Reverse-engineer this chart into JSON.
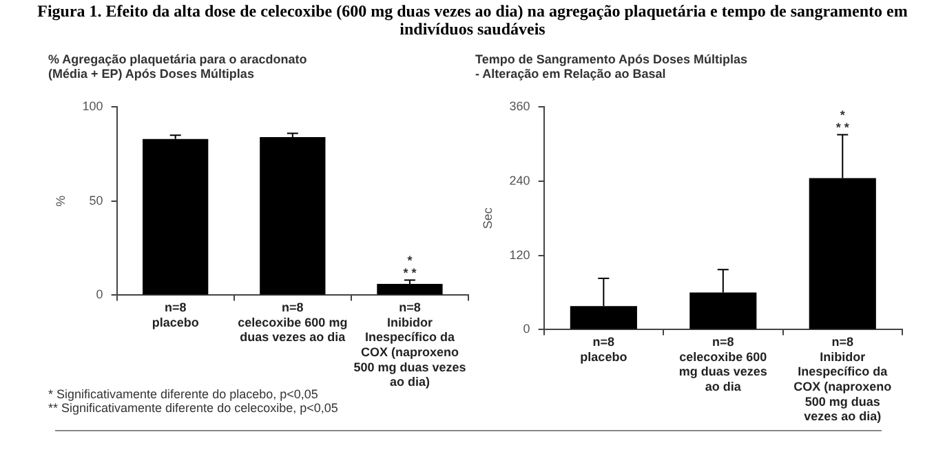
{
  "chart_data": [
    {
      "type": "other",
      "title": "Figura 1. Efeito da alta dose de celecoxibe (600 mg duas vezes ao dia) na agregação plaquetária e tempo de sangramento em indivíduos saudáveis",
      "annotations": [
        "* Significativamente diferente do placebo, p<0,05",
        "** Significativamente diferente do celecoxibe, p<0,05"
      ]
    },
    {
      "type": "bar",
      "title": "% Agregação plaquetária para o aracdonato (Média + EP) Após Doses Múltiplas",
      "ylabel": "%",
      "categories": [
        "n=8 placebo",
        "n=8 celecoxibe 600 mg duas vezes ao dia",
        "n=8 Inibidor Inespecífico da COX (naproxeno 500 mg duas vezes ao dia)"
      ],
      "series": [
        {
          "color": "#000000",
          "values": [
            83,
            84,
            6
          ],
          "errors": [
            [
              83,
              85
            ],
            [
              84,
              86
            ],
            [
              6,
              8
            ]
          ]
        }
      ],
      "ylim": [
        0,
        100
      ],
      "yticks": [
        0,
        50,
        100
      ],
      "grid": false,
      "legend": false,
      "annotations": [
        "*",
        "* *"
      ]
    },
    {
      "type": "bar",
      "title": "Tempo de Sangramento Após Doses Múltiplas - Alteração em Relação ao Basal",
      "ylabel": "Sec",
      "categories": [
        "n=8 placebo",
        "n=8 celecoxibe 600 mg duas vezes ao dia",
        "n=8 Inibidor Inespecífico da COX (naproxeno 500 mg duas vezes ao dia)"
      ],
      "series": [
        {
          "color": "#000000",
          "values": [
            38,
            60,
            245
          ],
          "errors": [
            [
              38,
              83
            ],
            [
              60,
              97
            ],
            [
              245,
              315
            ]
          ]
        }
      ],
      "ylim": [
        0,
        360
      ],
      "yticks": [
        0,
        120,
        240,
        360
      ],
      "grid": false,
      "legend": false,
      "annotations": [
        "*",
        "* *"
      ]
    }
  ]
}
